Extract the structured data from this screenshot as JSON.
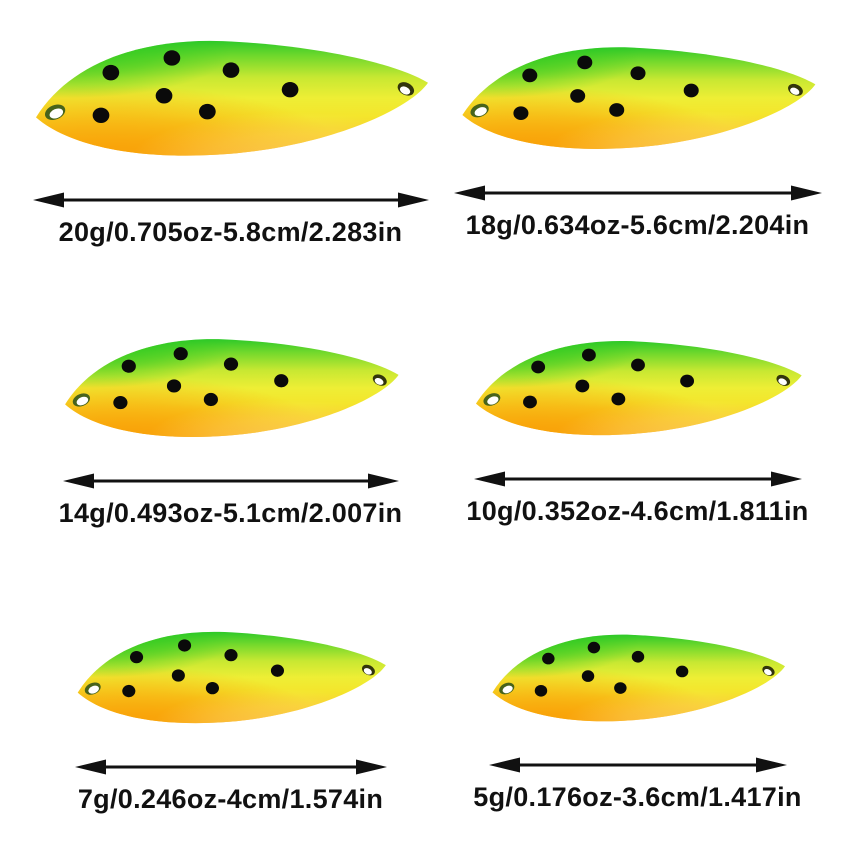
{
  "page": {
    "background": "#ffffff"
  },
  "style": {
    "dot_color": "#0a0a0a",
    "text_color": "#111111",
    "arrow_color": "#111111",
    "body_stops": [
      [
        0,
        "#2ec929"
      ],
      [
        0.14,
        "#74d92c"
      ],
      [
        0.32,
        "#c8e832"
      ],
      [
        0.5,
        "#eeee35"
      ],
      [
        0.66,
        "#f4e52c"
      ],
      [
        0.84,
        "#f8c81c"
      ],
      [
        1,
        "#f9aa10"
      ]
    ],
    "orange_accent": "#f9a108",
    "green_accent": "#25c81f",
    "sheen_color": "#fff3a0",
    "hole_rim_left": "#47631b",
    "hole_rim_right": "#32350c",
    "hole_inner": "#ffffff",
    "dots": [
      [
        0.35,
        0.18
      ],
      [
        0.195,
        0.3
      ],
      [
        0.5,
        0.28
      ],
      [
        0.65,
        0.44
      ],
      [
        0.33,
        0.49
      ],
      [
        0.44,
        0.62
      ],
      [
        0.17,
        0.65
      ]
    ]
  },
  "spoons": [
    {
      "label": "20g/0.705oz-5.8cm/2.283in",
      "spoon_width": 402,
      "spoon_height": 122,
      "arrow_width": 396
    },
    {
      "label": "18g/0.634oz-5.6cm/2.204in",
      "spoon_width": 362,
      "spoon_height": 108,
      "arrow_width": 368
    },
    {
      "label": "14g/0.493oz-5.1cm/2.007in",
      "spoon_width": 342,
      "spoon_height": 104,
      "arrow_width": 336
    },
    {
      "label": "10g/0.352oz-4.6cm/1.811in",
      "spoon_width": 334,
      "spoon_height": 100,
      "arrow_width": 328
    },
    {
      "label": "7g/0.246oz-4cm/1.574in",
      "spoon_width": 316,
      "spoon_height": 97,
      "arrow_width": 312
    },
    {
      "label": "5g/0.176oz-3.6cm/1.417in",
      "spoon_width": 300,
      "spoon_height": 92,
      "arrow_width": 298
    }
  ]
}
